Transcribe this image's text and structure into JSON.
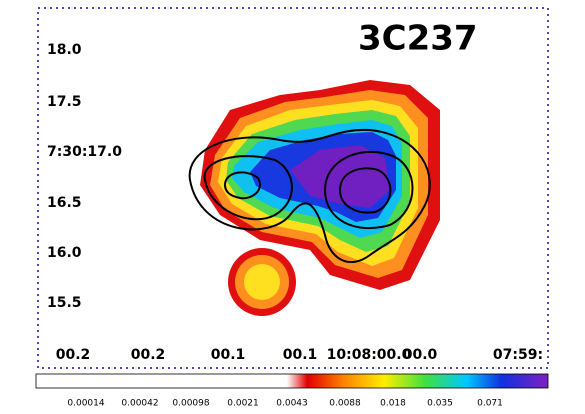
{
  "image": {
    "title": "3C237",
    "y_labels": [
      "18.0",
      "17.5",
      "7:30:17.0",
      "16.5",
      "16.0",
      "15.5"
    ],
    "x_labels": [
      "00.2",
      "00.2",
      "00.1",
      "00.1",
      "10:08:00.0",
      "00.0",
      "07:59:"
    ],
    "colorbar_labels": [
      0.00014,
      0.00042,
      0.00098,
      0.0021,
      0.0043,
      0.0088,
      0.018,
      0.035,
      0.071
    ]
  }
}
